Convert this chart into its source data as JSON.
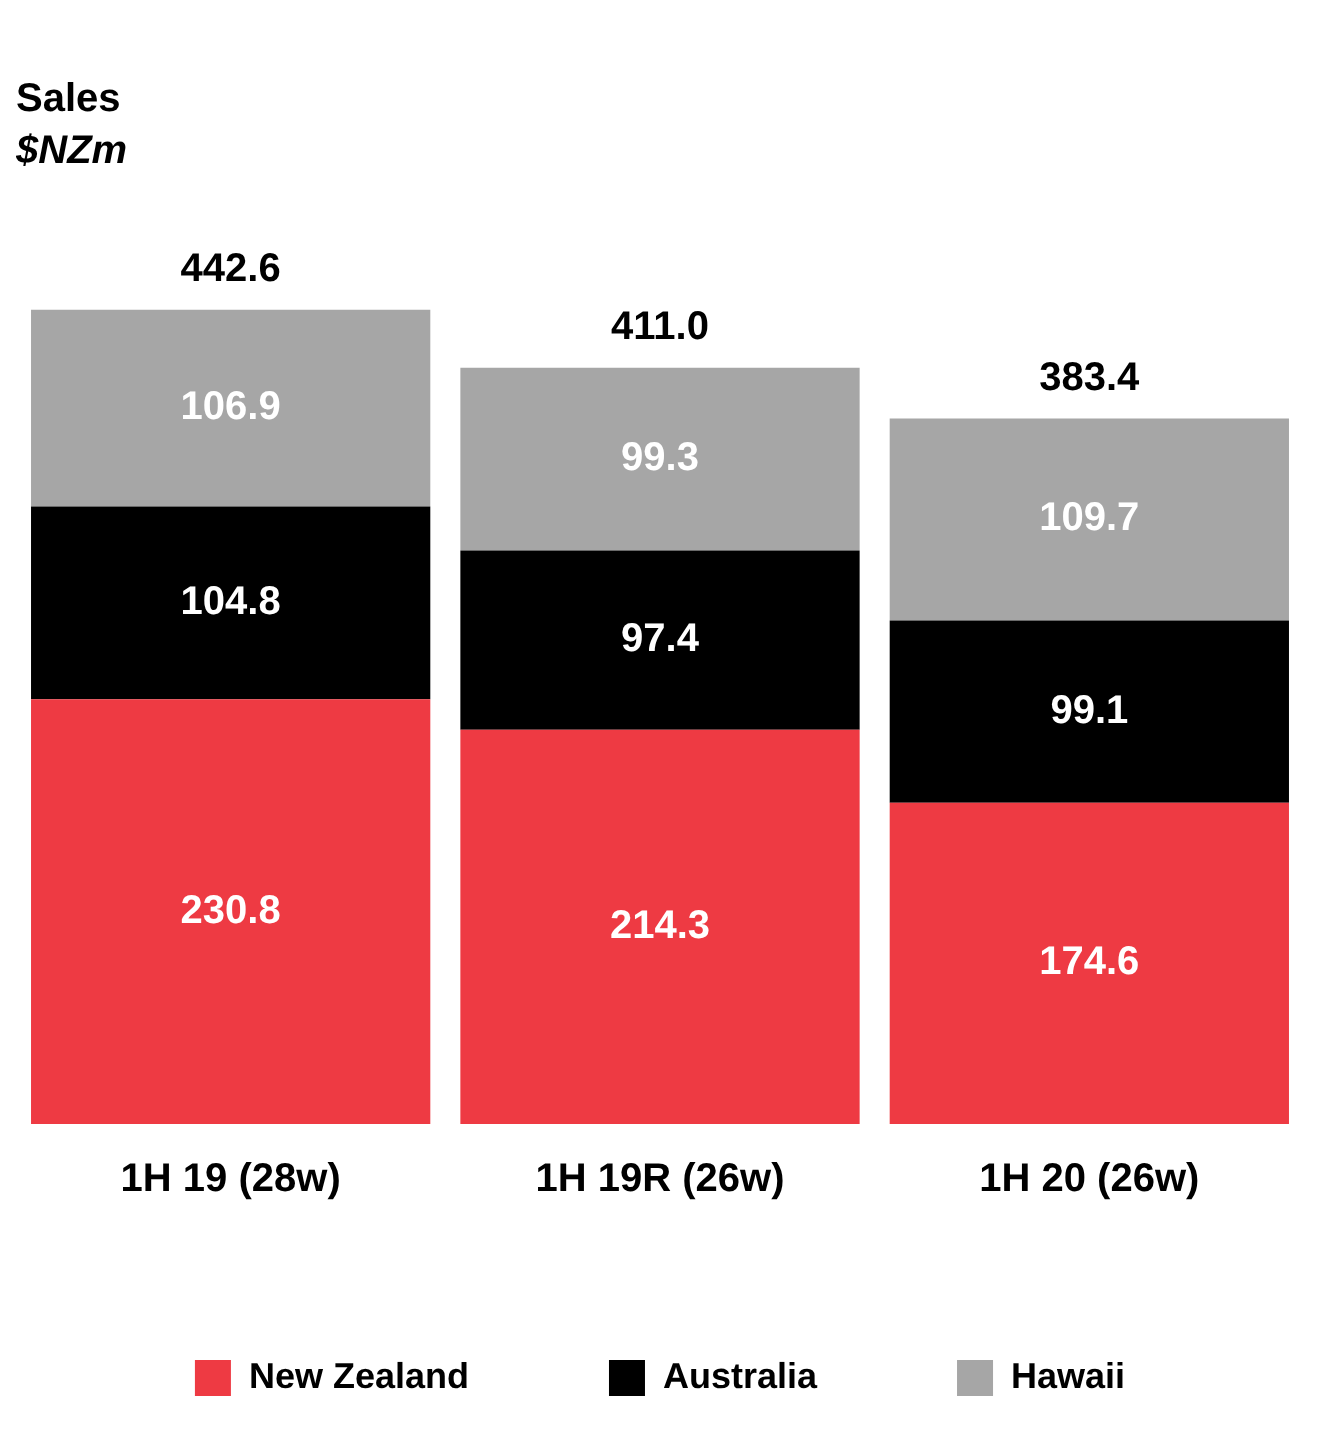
{
  "chart_data": {
    "type": "bar",
    "title": "Sales",
    "subtitle": "$NZm",
    "categories": [
      "1H 19 (28w)",
      "1H 19R (26w)",
      "1H 20 (26w)"
    ],
    "stacked": true,
    "data_labels": true,
    "legend": "bottom",
    "totals": [
      "442.6",
      "411.0",
      "383.4"
    ],
    "series": [
      {
        "name": "New Zealand",
        "color": "#ee3a43",
        "values": [
          230.8,
          214.3,
          174.6
        ]
      },
      {
        "name": "Australia",
        "color": "#000000",
        "values": [
          104.8,
          97.4,
          99.1
        ]
      },
      {
        "name": "Hawaii",
        "color": "#a6a6a6",
        "values": [
          106.9,
          99.3,
          109.7
        ]
      }
    ]
  }
}
